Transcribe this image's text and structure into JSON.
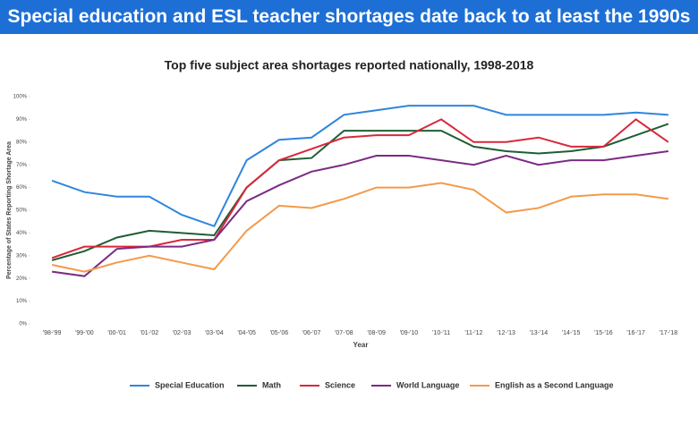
{
  "banner": "Special education and ESL teacher shortages date back to at least the 1990s",
  "chart_data": {
    "type": "line",
    "title": "Top five subject area shortages reported nationally, 1998-2018",
    "xlabel": "Year",
    "ylabel": "Percentage of States Reporting Shortage Area",
    "categories": [
      "'98-'99",
      "'99-'00",
      "'00-'01",
      "'01-'02",
      "'02-'03",
      "'03-'04",
      "'04-'05",
      "'05-'06",
      "'06-'07",
      "'07-'08",
      "'08-'09",
      "'09-'10",
      "'10-'11",
      "'11-'12",
      "'12-'13",
      "'13-'14",
      "'14-'15",
      "'15-'16",
      "'16-'17",
      "'17-'18"
    ],
    "series": [
      {
        "name": "Special Education",
        "color": "#2f86dc",
        "values": [
          63,
          58,
          56,
          56,
          48,
          43,
          72,
          81,
          82,
          92,
          94,
          96,
          96,
          96,
          92,
          92,
          92,
          92,
          93,
          92
        ]
      },
      {
        "name": "Math",
        "color": "#1f5e34",
        "values": [
          28,
          32,
          38,
          41,
          40,
          39,
          60,
          72,
          73,
          85,
          85,
          85,
          85,
          78,
          76,
          75,
          76,
          78,
          83,
          88
        ]
      },
      {
        "name": "Science",
        "color": "#d8283c",
        "values": [
          29,
          34,
          34,
          34,
          37,
          37,
          60,
          72,
          77,
          82,
          83,
          83,
          90,
          80,
          80,
          82,
          78,
          78,
          90,
          80
        ]
      },
      {
        "name": "World Language",
        "color": "#7b2b84",
        "values": [
          23,
          21,
          33,
          34,
          34,
          37,
          54,
          61,
          67,
          70,
          74,
          74,
          72,
          70,
          74,
          70,
          72,
          72,
          74,
          76
        ]
      },
      {
        "name": "English as a Second Language",
        "color": "#f39a4a",
        "values": [
          26,
          23,
          27,
          30,
          27,
          24,
          41,
          52,
          51,
          55,
          60,
          60,
          62,
          59,
          49,
          51,
          56,
          57,
          57,
          55
        ]
      }
    ],
    "ylim": [
      0,
      100
    ],
    "yticks": [
      {
        "value": 0,
        "label": "0%"
      },
      {
        "value": 10,
        "label": "10%"
      },
      {
        "value": 20,
        "label": "20%"
      },
      {
        "value": 30,
        "label": "30%"
      },
      {
        "value": 40,
        "label": "40%"
      },
      {
        "value": 50,
        "label": "50%"
      },
      {
        "value": 60,
        "label": "60%"
      },
      {
        "value": 70,
        "label": "70%"
      },
      {
        "value": 80,
        "label": "80%"
      },
      {
        "value": 90,
        "label": "90%"
      },
      {
        "value": 100,
        "label": "100%"
      }
    ],
    "legend": "bottom"
  }
}
